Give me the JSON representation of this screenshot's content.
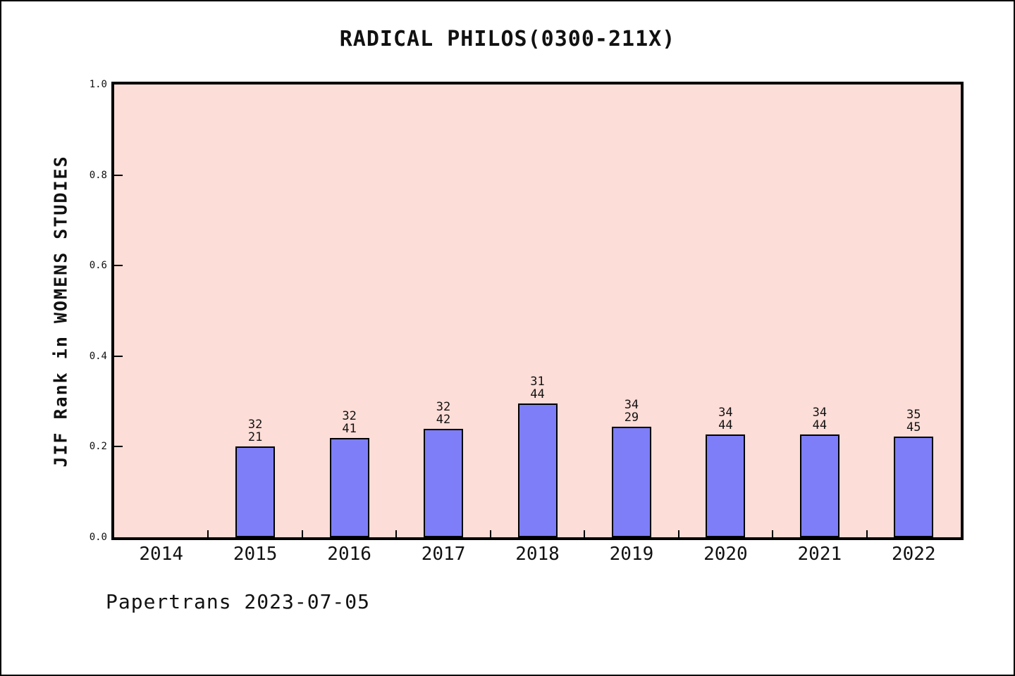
{
  "chart_data": {
    "type": "bar",
    "title": "RADICAL PHILOS(0300-211X)",
    "ylabel": "JIF Rank in WOMENS STUDIES",
    "xlabel": "",
    "footer": "Papertrans 2023-07-05",
    "ylim": [
      0,
      1
    ],
    "ytick_labels": [
      "1.0",
      "0.8",
      "0.6",
      "0.4",
      "0.2",
      "0.0"
    ],
    "grid": false,
    "legend": null,
    "colors": {
      "plot_background": "#fcddd7",
      "bar_fill": "#7e7ef8",
      "bar_edge": "#000000",
      "axis": "#000000",
      "text": "#111111",
      "page_background": "#ffffff"
    },
    "categories": [
      "2014",
      "2015",
      "2016",
      "2017",
      "2018",
      "2019",
      "2020",
      "2021",
      "2022"
    ],
    "bars": [
      {
        "year": "2014",
        "value": null,
        "label_top": "",
        "label_bottom": ""
      },
      {
        "year": "2015",
        "value": 0.2,
        "label_top": "32",
        "label_bottom": "21"
      },
      {
        "year": "2016",
        "value": 0.219,
        "label_top": "32",
        "label_bottom": "41"
      },
      {
        "year": "2017",
        "value": 0.239,
        "label_top": "32",
        "label_bottom": "42"
      },
      {
        "year": "2018",
        "value": 0.295,
        "label_top": "31",
        "label_bottom": "44"
      },
      {
        "year": "2019",
        "value": 0.244,
        "label_top": "34",
        "label_bottom": "29"
      },
      {
        "year": "2020",
        "value": 0.227,
        "label_top": "34",
        "label_bottom": "44"
      },
      {
        "year": "2021",
        "value": 0.227,
        "label_top": "34",
        "label_bottom": "44"
      },
      {
        "year": "2022",
        "value": 0.222,
        "label_top": "35",
        "label_bottom": "45"
      }
    ]
  }
}
